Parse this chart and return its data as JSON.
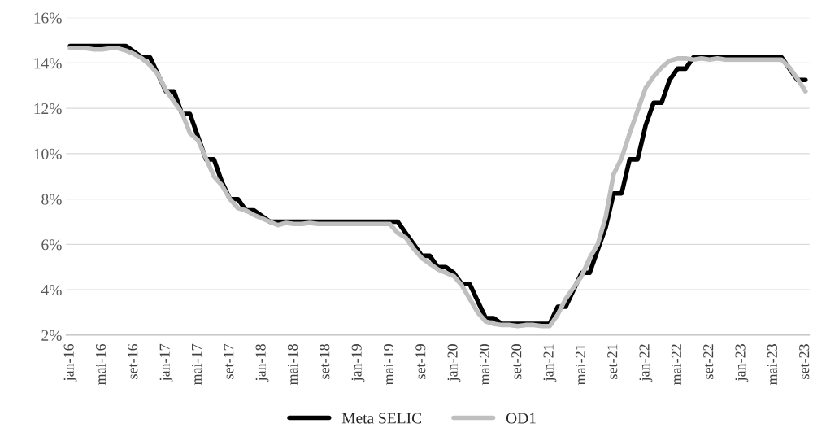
{
  "chart_data": {
    "type": "line",
    "categories": [
      "jan-16",
      null,
      null,
      null,
      "mai-16",
      null,
      null,
      null,
      "set-16",
      null,
      null,
      null,
      "jan-17",
      null,
      null,
      null,
      "mai-17",
      null,
      null,
      null,
      "set-17",
      null,
      null,
      null,
      "jan-18",
      null,
      null,
      null,
      "mai-18",
      null,
      null,
      null,
      "set-18",
      null,
      null,
      null,
      "jan-19",
      null,
      null,
      null,
      "mai-19",
      null,
      null,
      null,
      "set-19",
      null,
      null,
      null,
      "jan-20",
      null,
      null,
      null,
      "mai-20",
      null,
      null,
      null,
      "set-20",
      null,
      null,
      null,
      "jan-21",
      null,
      null,
      null,
      "mai-21",
      null,
      null,
      null,
      "set-21",
      null,
      null,
      null,
      "jan-22",
      null,
      null,
      null,
      "mai-22",
      null,
      null,
      null,
      "set-22",
      null,
      null,
      null,
      "jan-23",
      null,
      null,
      null,
      "mai-23",
      null,
      null,
      null,
      "set-23"
    ],
    "series": [
      {
        "name": "Meta SELIC",
        "color": "#000000",
        "values": [
          14.75,
          14.75,
          14.75,
          14.75,
          14.75,
          14.75,
          14.75,
          14.75,
          14.5,
          14.25,
          14.25,
          13.5,
          12.75,
          12.75,
          11.75,
          11.75,
          10.75,
          9.75,
          9.75,
          8.75,
          8.0,
          8.0,
          7.5,
          7.5,
          7.25,
          7.0,
          7.0,
          7.0,
          7.0,
          7.0,
          7.0,
          7.0,
          7.0,
          7.0,
          7.0,
          7.0,
          7.0,
          7.0,
          7.0,
          7.0,
          7.0,
          7.0,
          6.5,
          6.0,
          5.5,
          5.5,
          5.0,
          5.0,
          4.75,
          4.25,
          4.25,
          3.5,
          2.75,
          2.75,
          2.5,
          2.5,
          2.5,
          2.5,
          2.5,
          2.5,
          2.5,
          3.25,
          3.25,
          4.0,
          4.75,
          4.75,
          5.75,
          6.75,
          8.25,
          8.25,
          9.75,
          9.75,
          11.25,
          12.25,
          12.25,
          13.25,
          13.75,
          13.75,
          14.25,
          14.25,
          14.25,
          14.25,
          14.25,
          14.25,
          14.25,
          14.25,
          14.25,
          14.25,
          14.25,
          14.25,
          13.75,
          13.25,
          13.25
        ]
      },
      {
        "name": "OD1",
        "color": "#bfbfbf",
        "values": [
          14.65,
          14.65,
          14.65,
          14.6,
          14.6,
          14.65,
          14.65,
          14.55,
          14.4,
          14.2,
          13.9,
          13.5,
          12.8,
          12.3,
          11.8,
          10.9,
          10.6,
          9.8,
          9.0,
          8.6,
          8.0,
          7.6,
          7.5,
          7.3,
          7.15,
          7.0,
          6.85,
          6.95,
          6.9,
          6.9,
          6.95,
          6.9,
          6.9,
          6.9,
          6.9,
          6.9,
          6.9,
          6.9,
          6.9,
          6.9,
          6.9,
          6.5,
          6.3,
          5.8,
          5.4,
          5.15,
          4.9,
          4.75,
          4.6,
          4.2,
          3.6,
          3.0,
          2.6,
          2.5,
          2.45,
          2.45,
          2.4,
          2.45,
          2.45,
          2.4,
          2.4,
          2.9,
          3.6,
          4.1,
          4.6,
          5.4,
          6.0,
          7.2,
          9.1,
          9.8,
          10.9,
          11.9,
          12.9,
          13.4,
          13.8,
          14.1,
          14.2,
          14.2,
          14.15,
          14.2,
          14.15,
          14.2,
          14.15,
          14.15,
          14.15,
          14.15,
          14.15,
          14.15,
          14.15,
          14.15,
          13.8,
          13.3,
          12.75
        ]
      }
    ],
    "ylim": [
      2,
      16
    ],
    "yticks": [
      {
        "value": 2,
        "label": "2%"
      },
      {
        "value": 4,
        "label": "4%"
      },
      {
        "value": 6,
        "label": "6%"
      },
      {
        "value": 8,
        "label": "8%"
      },
      {
        "value": 10,
        "label": "10%"
      },
      {
        "value": 12,
        "label": "12%"
      },
      {
        "value": 14,
        "label": "14%"
      },
      {
        "value": 16,
        "label": "16%"
      }
    ],
    "grid": "y",
    "legend": "bottom",
    "marker": "none",
    "line_style": "solid"
  }
}
